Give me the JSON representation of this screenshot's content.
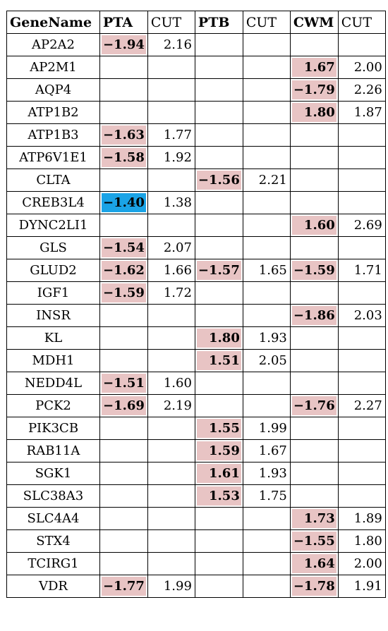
{
  "header": [
    "GeneName",
    "PTA",
    "CUT",
    "PTB",
    "CUT",
    "CWM",
    "CUT"
  ],
  "colors": {
    "pink": "#e8c4c4",
    "blue": "#1aa3e6"
  },
  "rows": [
    {
      "gene": "AP2A2",
      "pta": "−1.94",
      "pta_c": "pink",
      "pta_cut": "2.16",
      "ptb": "",
      "ptb_c": "",
      "ptb_cut": "",
      "cwm": "",
      "cwm_c": "",
      "cwm_cut": ""
    },
    {
      "gene": "AP2M1",
      "pta": "",
      "pta_c": "",
      "pta_cut": "",
      "ptb": "",
      "ptb_c": "",
      "ptb_cut": "",
      "cwm": "1.67",
      "cwm_c": "pink",
      "cwm_cut": "2.00"
    },
    {
      "gene": "AQP4",
      "pta": "",
      "pta_c": "",
      "pta_cut": "",
      "ptb": "",
      "ptb_c": "",
      "ptb_cut": "",
      "cwm": "−1.79",
      "cwm_c": "pink",
      "cwm_cut": "2.26"
    },
    {
      "gene": "ATP1B2",
      "pta": "",
      "pta_c": "",
      "pta_cut": "",
      "ptb": "",
      "ptb_c": "",
      "ptb_cut": "",
      "cwm": "1.80",
      "cwm_c": "pink",
      "cwm_cut": "1.87"
    },
    {
      "gene": "ATP1B3",
      "pta": "−1.63",
      "pta_c": "pink",
      "pta_cut": "1.77",
      "ptb": "",
      "ptb_c": "",
      "ptb_cut": "",
      "cwm": "",
      "cwm_c": "",
      "cwm_cut": ""
    },
    {
      "gene": "ATP6V1E1",
      "pta": "−1.58",
      "pta_c": "pink",
      "pta_cut": "1.92",
      "ptb": "",
      "ptb_c": "",
      "ptb_cut": "",
      "cwm": "",
      "cwm_c": "",
      "cwm_cut": ""
    },
    {
      "gene": "CLTA",
      "pta": "",
      "pta_c": "",
      "pta_cut": "",
      "ptb": "−1.56",
      "ptb_c": "pink",
      "ptb_cut": "2.21",
      "cwm": "",
      "cwm_c": "",
      "cwm_cut": ""
    },
    {
      "gene": "CREB3L4",
      "pta": "−1.40",
      "pta_c": "blue",
      "pta_cut": "1.38",
      "ptb": "",
      "ptb_c": "",
      "ptb_cut": "",
      "cwm": "",
      "cwm_c": "",
      "cwm_cut": ""
    },
    {
      "gene": "DYNC2LI1",
      "pta": "",
      "pta_c": "",
      "pta_cut": "",
      "ptb": "",
      "ptb_c": "",
      "ptb_cut": "",
      "cwm": "1.60",
      "cwm_c": "pink",
      "cwm_cut": "2.69"
    },
    {
      "gene": "GLS",
      "pta": "−1.54",
      "pta_c": "pink",
      "pta_cut": "2.07",
      "ptb": "",
      "ptb_c": "",
      "ptb_cut": "",
      "cwm": "",
      "cwm_c": "",
      "cwm_cut": ""
    },
    {
      "gene": "GLUD2",
      "pta": "−1.62",
      "pta_c": "pink",
      "pta_cut": "1.66",
      "ptb": "−1.57",
      "ptb_c": "pink",
      "ptb_cut": "1.65",
      "cwm": "−1.59",
      "cwm_c": "pink",
      "cwm_cut": "1.71"
    },
    {
      "gene": "IGF1",
      "pta": "−1.59",
      "pta_c": "pink",
      "pta_cut": "1.72",
      "ptb": "",
      "ptb_c": "",
      "ptb_cut": "",
      "cwm": "",
      "cwm_c": "",
      "cwm_cut": ""
    },
    {
      "gene": "INSR",
      "pta": "",
      "pta_c": "",
      "pta_cut": "",
      "ptb": "",
      "ptb_c": "",
      "ptb_cut": "",
      "cwm": "−1.86",
      "cwm_c": "pink",
      "cwm_cut": "2.03"
    },
    {
      "gene": "KL",
      "pta": "",
      "pta_c": "",
      "pta_cut": "",
      "ptb": "1.80",
      "ptb_c": "pink",
      "ptb_cut": "1.93",
      "cwm": "",
      "cwm_c": "",
      "cwm_cut": ""
    },
    {
      "gene": "MDH1",
      "pta": "",
      "pta_c": "",
      "pta_cut": "",
      "ptb": "1.51",
      "ptb_c": "pink",
      "ptb_cut": "2.05",
      "cwm": "",
      "cwm_c": "",
      "cwm_cut": ""
    },
    {
      "gene": "NEDD4L",
      "pta": "−1.51",
      "pta_c": "pink",
      "pta_cut": "1.60",
      "ptb": "",
      "ptb_c": "",
      "ptb_cut": "",
      "cwm": "",
      "cwm_c": "",
      "cwm_cut": ""
    },
    {
      "gene": "PCK2",
      "pta": "−1.69",
      "pta_c": "pink",
      "pta_cut": "2.19",
      "ptb": "",
      "ptb_c": "",
      "ptb_cut": "",
      "cwm": "−1.76",
      "cwm_c": "pink",
      "cwm_cut": "2.27"
    },
    {
      "gene": "PIK3CB",
      "pta": "",
      "pta_c": "",
      "pta_cut": "",
      "ptb": "1.55",
      "ptb_c": "pink",
      "ptb_cut": "1.99",
      "cwm": "",
      "cwm_c": "",
      "cwm_cut": ""
    },
    {
      "gene": "RAB11A",
      "pta": "",
      "pta_c": "",
      "pta_cut": "",
      "ptb": "1.59",
      "ptb_c": "pink",
      "ptb_cut": "1.67",
      "cwm": "",
      "cwm_c": "",
      "cwm_cut": ""
    },
    {
      "gene": "SGK1",
      "pta": "",
      "pta_c": "",
      "pta_cut": "",
      "ptb": "1.61",
      "ptb_c": "pink",
      "ptb_cut": "1.93",
      "cwm": "",
      "cwm_c": "",
      "cwm_cut": ""
    },
    {
      "gene": "SLC38A3",
      "pta": "",
      "pta_c": "",
      "pta_cut": "",
      "ptb": "1.53",
      "ptb_c": "pink",
      "ptb_cut": "1.75",
      "cwm": "",
      "cwm_c": "",
      "cwm_cut": ""
    },
    {
      "gene": "SLC4A4",
      "pta": "",
      "pta_c": "",
      "pta_cut": "",
      "ptb": "",
      "ptb_c": "",
      "ptb_cut": "",
      "cwm": "1.73",
      "cwm_c": "pink",
      "cwm_cut": "1.89"
    },
    {
      "gene": "STX4",
      "pta": "",
      "pta_c": "",
      "pta_cut": "",
      "ptb": "",
      "ptb_c": "",
      "ptb_cut": "",
      "cwm": "−1.55",
      "cwm_c": "pink",
      "cwm_cut": "1.80"
    },
    {
      "gene": "TCIRG1",
      "pta": "",
      "pta_c": "",
      "pta_cut": "",
      "ptb": "",
      "ptb_c": "",
      "ptb_cut": "",
      "cwm": "1.64",
      "cwm_c": "pink",
      "cwm_cut": "2.00"
    },
    {
      "gene": "VDR",
      "pta": "−1.77",
      "pta_c": "pink",
      "pta_cut": "1.99",
      "ptb": "",
      "ptb_c": "",
      "ptb_cut": "",
      "cwm": "−1.78",
      "cwm_c": "pink",
      "cwm_cut": "1.91"
    }
  ]
}
